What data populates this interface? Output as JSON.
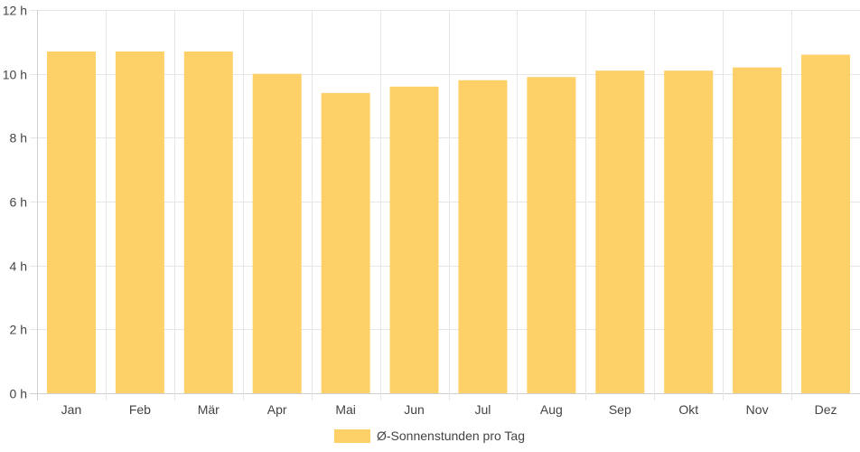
{
  "chart_data": {
    "type": "bar",
    "categories": [
      "Jan",
      "Feb",
      "Mär",
      "Apr",
      "Mai",
      "Jun",
      "Jul",
      "Aug",
      "Sep",
      "Okt",
      "Nov",
      "Dez"
    ],
    "series": [
      {
        "name": "Ø-Sonnenstunden pro Tag",
        "values": [
          10.7,
          10.7,
          10.7,
          10.0,
          9.4,
          9.6,
          9.8,
          9.9,
          10.1,
          10.1,
          10.2,
          10.6
        ]
      }
    ],
    "yticks": [
      "0 h",
      "2 h",
      "4 h",
      "6 h",
      "8 h",
      "10 h",
      "12 h"
    ],
    "ylim": [
      0,
      12
    ],
    "y_unit_suffix": " h",
    "grid": true,
    "legend_position": "bottom",
    "colors": {
      "bar": "#fdd068",
      "grid": "#e6e6e6",
      "axis": "#cfcfcf"
    }
  }
}
